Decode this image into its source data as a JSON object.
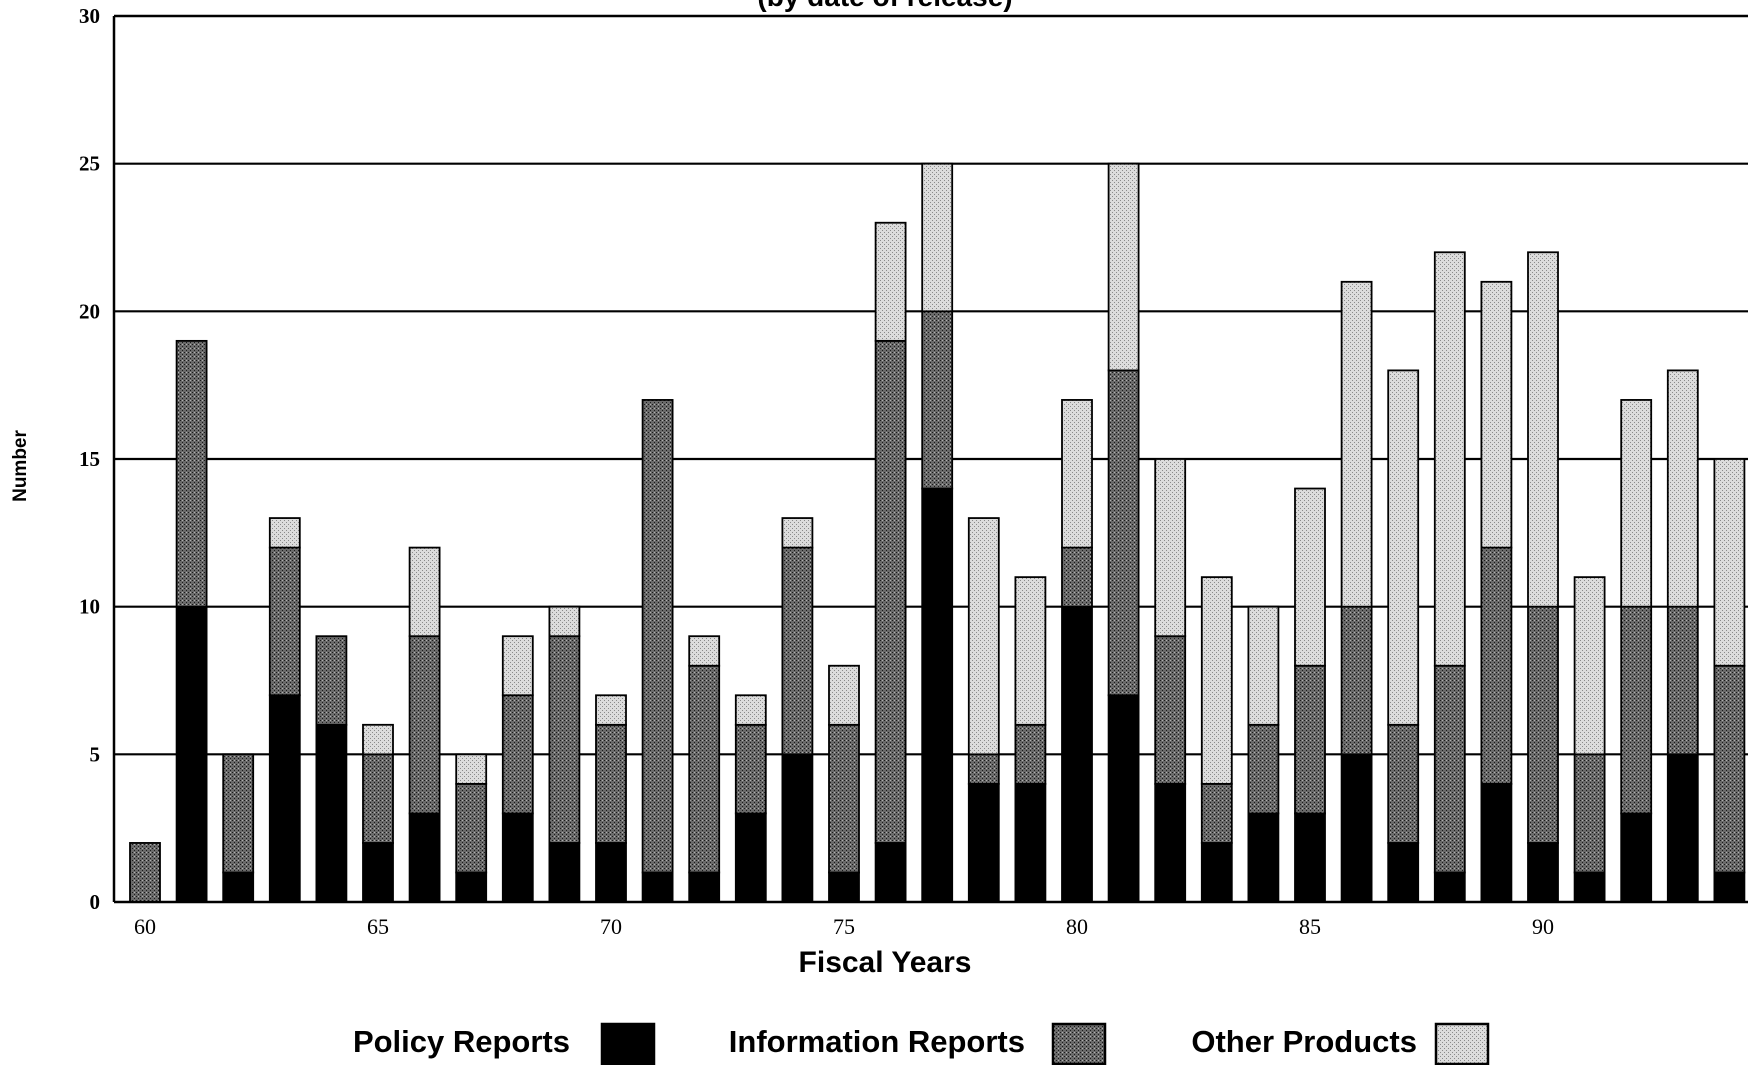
{
  "chart_data": {
    "type": "bar",
    "stacked": true,
    "subtitle": "(by date of release)",
    "xlabel": "Fiscal Years",
    "ylabel": "Number",
    "ylim": [
      0,
      30
    ],
    "yticks": [
      0,
      5,
      10,
      15,
      20,
      25,
      30
    ],
    "xtick_labels": [
      {
        "year": 60,
        "label": "60"
      },
      {
        "year": 65,
        "label": "65"
      },
      {
        "year": 70,
        "label": "70"
      },
      {
        "year": 75,
        "label": "75"
      },
      {
        "year": 80,
        "label": "80"
      },
      {
        "year": 85,
        "label": "85"
      },
      {
        "year": 90,
        "label": "90"
      }
    ],
    "grid": "horizontal",
    "legend_position": "bottom",
    "colors": {
      "Policy Reports": "#000000",
      "Information Reports": "#5e5e5e",
      "Other Products": "#d6d6d6"
    },
    "categories": [
      60,
      61,
      62,
      63,
      64,
      65,
      66,
      67,
      68,
      69,
      70,
      71,
      72,
      73,
      74,
      75,
      76,
      77,
      78,
      79,
      80,
      81,
      82,
      83,
      84,
      85,
      86,
      87,
      88,
      89,
      90,
      91,
      92,
      93,
      94
    ],
    "series": [
      {
        "name": "Policy Reports",
        "values": [
          0,
          10,
          1,
          7,
          6,
          2,
          3,
          1,
          3,
          2,
          2,
          1,
          1,
          3,
          5,
          1,
          2,
          14,
          4,
          4,
          10,
          7,
          4,
          2,
          3,
          3,
          5,
          2,
          1,
          4,
          2,
          1,
          3,
          5,
          1
        ]
      },
      {
        "name": "Information Reports",
        "values": [
          2,
          9,
          4,
          5,
          3,
          3,
          6,
          3,
          4,
          7,
          4,
          16,
          7,
          3,
          7,
          5,
          17,
          6,
          1,
          2,
          2,
          11,
          5,
          2,
          3,
          5,
          5,
          4,
          7,
          8,
          8,
          4,
          7,
          5,
          7
        ]
      },
      {
        "name": "Other Products",
        "values": [
          0,
          0,
          0,
          1,
          0,
          1,
          3,
          1,
          2,
          1,
          1,
          0,
          1,
          1,
          1,
          2,
          4,
          5,
          8,
          5,
          5,
          7,
          6,
          7,
          4,
          6,
          11,
          12,
          14,
          9,
          12,
          6,
          7,
          8,
          7
        ]
      }
    ]
  }
}
